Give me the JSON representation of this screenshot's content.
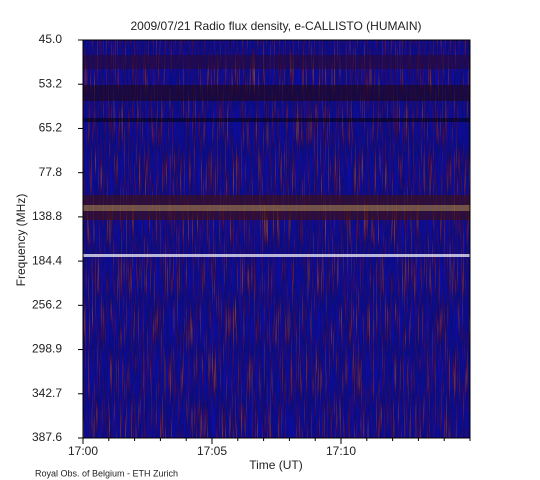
{
  "chart_data": {
    "type": "spectrogram",
    "title": "2009/07/21  Radio flux density, e-CALLISTO (HUMAIN)",
    "y_label": "Frequency (MHz)",
    "x_label": "Time (UT)",
    "credit": "Royal Obs. of Belgium - ETH Zurich",
    "y_categories": [
      "45.0",
      "53.2",
      "65.2",
      "77.8",
      "138.8",
      "184.4",
      "256.2",
      "298.9",
      "342.7",
      "387.6"
    ],
    "xlim": [
      "17:00",
      "17:15"
    ],
    "xticks": [
      "17:00",
      "17:05",
      "17:10"
    ]
  }
}
